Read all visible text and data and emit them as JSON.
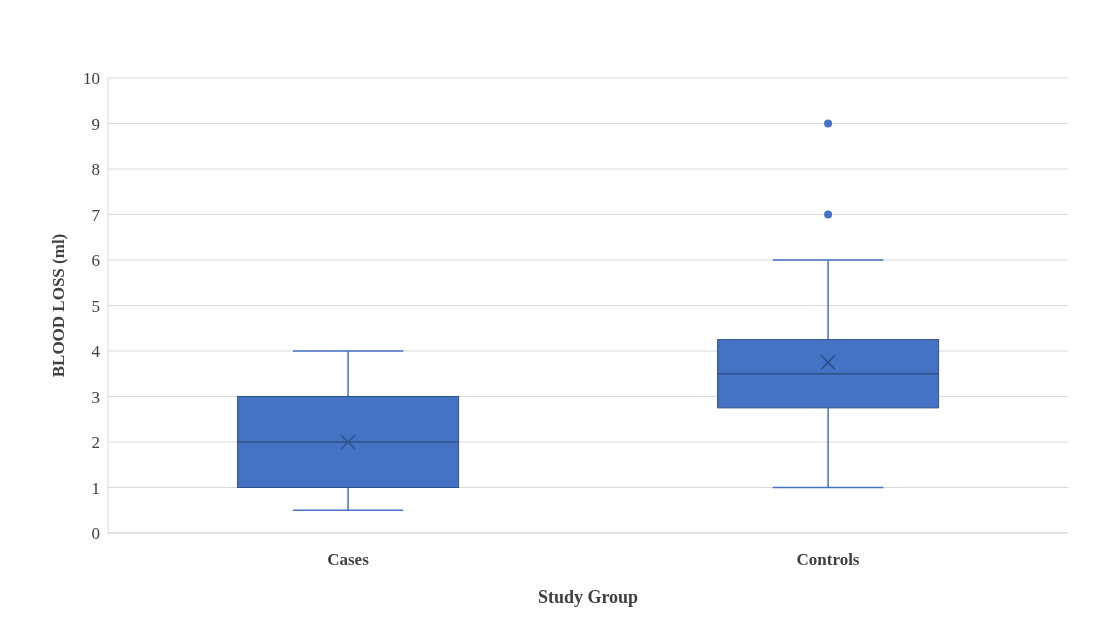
{
  "chart_data": {
    "type": "box",
    "xlabel": "Study Group",
    "ylabel": "BLOOD LOSS (ml)",
    "categories": [
      "Cases",
      "Controls"
    ],
    "color": "#4472c4",
    "boxes": [
      {
        "low": 0.5,
        "q1": 1,
        "median": 2,
        "q3": 3,
        "high": 4,
        "mean": 2
      },
      {
        "low": 1,
        "q1": 2.75,
        "median": 3.5,
        "q3": 4.25,
        "high": 6,
        "mean": 3.75,
        "outliers": [
          7,
          9
        ]
      }
    ],
    "ylim": [
      0,
      10
    ],
    "yticks": [
      0,
      1,
      2,
      3,
      4,
      5,
      6,
      7,
      8,
      9,
      10
    ],
    "grid": "y"
  }
}
